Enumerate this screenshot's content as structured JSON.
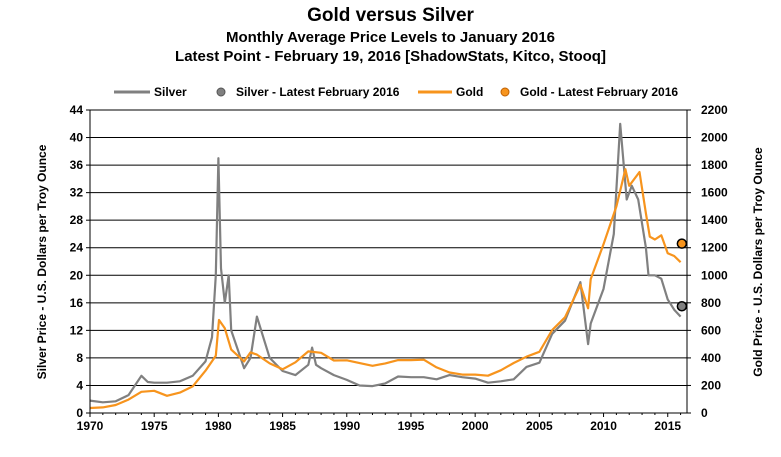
{
  "chart_data": {
    "type": "line",
    "title": "Gold versus Silver",
    "subtitle": "Monthly Average Price Levels to January 2016",
    "subtitle2": "Latest Point - February 19, 2016 [ShadowStats, Kitco, Stooq]",
    "ylabel_left": "Silver  Price - U.S. Dollars per Troy Ounce",
    "ylabel_right": "Gold Price - U.S. Dollars per Troy Ounce",
    "xlim": [
      1970,
      2016.5
    ],
    "ylim_left": [
      0,
      44
    ],
    "ylim_right": [
      0,
      2200
    ],
    "x_ticks": [
      "1970",
      "1975",
      "1980",
      "1985",
      "1990",
      "1995",
      "2000",
      "2005",
      "2010",
      "2015"
    ],
    "y_left_ticks": [
      "0",
      "4",
      "8",
      "12",
      "16",
      "20",
      "24",
      "28",
      "32",
      "36",
      "40",
      "44"
    ],
    "y_right_ticks": [
      "0",
      "200",
      "400",
      "600",
      "800",
      "1000",
      "1200",
      "1400",
      "1600",
      "1800",
      "2000",
      "2200"
    ],
    "grid": true,
    "legend_position": "top",
    "legend": [
      {
        "label": "Silver",
        "kind": "line",
        "color": "#808080"
      },
      {
        "label": "Silver - Latest February 2016",
        "kind": "marker",
        "color": "#808080"
      },
      {
        "label": "Gold",
        "kind": "line",
        "color": "#f7941d"
      },
      {
        "label": "Gold - Latest February 2016",
        "kind": "marker",
        "color": "#f7941d"
      }
    ],
    "series": [
      {
        "name": "Silver",
        "axis": "left",
        "color": "#808080",
        "points": [
          [
            1970,
            1.8
          ],
          [
            1971,
            1.55
          ],
          [
            1972,
            1.7
          ],
          [
            1973,
            2.6
          ],
          [
            1974,
            5.4
          ],
          [
            1974.5,
            4.5
          ],
          [
            1975,
            4.4
          ],
          [
            1976,
            4.4
          ],
          [
            1977,
            4.6
          ],
          [
            1978,
            5.4
          ],
          [
            1979,
            7.5
          ],
          [
            1979.5,
            11
          ],
          [
            1979.8,
            20
          ],
          [
            1980.0,
            37
          ],
          [
            1980.2,
            21
          ],
          [
            1980.5,
            16
          ],
          [
            1980.8,
            20
          ],
          [
            1981,
            12
          ],
          [
            1982,
            6.5
          ],
          [
            1982.5,
            8
          ],
          [
            1983,
            14
          ],
          [
            1983.5,
            11
          ],
          [
            1984,
            8
          ],
          [
            1985,
            6.1
          ],
          [
            1986,
            5.5
          ],
          [
            1987,
            7.0
          ],
          [
            1987.3,
            9.5
          ],
          [
            1987.6,
            7.0
          ],
          [
            1988,
            6.5
          ],
          [
            1989,
            5.5
          ],
          [
            1990,
            4.8
          ],
          [
            1991,
            4.0
          ],
          [
            1992,
            3.9
          ],
          [
            1993,
            4.3
          ],
          [
            1994,
            5.3
          ],
          [
            1995,
            5.2
          ],
          [
            1996,
            5.2
          ],
          [
            1997,
            4.9
          ],
          [
            1998,
            5.5
          ],
          [
            1999,
            5.2
          ],
          [
            2000,
            5.0
          ],
          [
            2001,
            4.4
          ],
          [
            2002,
            4.6
          ],
          [
            2003,
            4.9
          ],
          [
            2004,
            6.7
          ],
          [
            2005,
            7.3
          ],
          [
            2006,
            11.5
          ],
          [
            2007,
            13.4
          ],
          [
            2008.2,
            19
          ],
          [
            2008.8,
            10
          ],
          [
            2009,
            13
          ],
          [
            2010,
            18
          ],
          [
            2010.8,
            26
          ],
          [
            2011.3,
            42
          ],
          [
            2011.8,
            31
          ],
          [
            2012.2,
            33
          ],
          [
            2012.7,
            31
          ],
          [
            2013.3,
            24
          ],
          [
            2013.5,
            20
          ],
          [
            2014,
            20
          ],
          [
            2014.5,
            19.5
          ],
          [
            2015,
            16.5
          ],
          [
            2015.5,
            15
          ],
          [
            2016,
            14.0
          ]
        ]
      },
      {
        "name": "Gold",
        "axis": "right",
        "color": "#f7941d",
        "points": [
          [
            1970,
            36
          ],
          [
            1971,
            41
          ],
          [
            1972,
            58
          ],
          [
            1973,
            97
          ],
          [
            1974,
            154
          ],
          [
            1975,
            161
          ],
          [
            1976,
            125
          ],
          [
            1977,
            148
          ],
          [
            1978,
            193
          ],
          [
            1979,
            307
          ],
          [
            1979.8,
            415
          ],
          [
            1980.05,
            675
          ],
          [
            1980.5,
            615
          ],
          [
            1981,
            460
          ],
          [
            1982,
            375
          ],
          [
            1982.5,
            440
          ],
          [
            1983,
            424
          ],
          [
            1984,
            360
          ],
          [
            1985,
            317
          ],
          [
            1986,
            368
          ],
          [
            1987,
            447
          ],
          [
            1988,
            437
          ],
          [
            1989,
            381
          ],
          [
            1990,
            383
          ],
          [
            1991,
            362
          ],
          [
            1992,
            343
          ],
          [
            1993,
            360
          ],
          [
            1994,
            384
          ],
          [
            1995,
            384
          ],
          [
            1996,
            387
          ],
          [
            1997,
            331
          ],
          [
            1998,
            294
          ],
          [
            1999,
            279
          ],
          [
            2000,
            279
          ],
          [
            2001,
            271
          ],
          [
            2002,
            310
          ],
          [
            2003,
            363
          ],
          [
            2004,
            409
          ],
          [
            2005,
            444
          ],
          [
            2006,
            603
          ],
          [
            2007,
            695
          ],
          [
            2008.2,
            930
          ],
          [
            2008.8,
            760
          ],
          [
            2009,
            972
          ],
          [
            2010,
            1225
          ],
          [
            2011,
            1500
          ],
          [
            2011.7,
            1770
          ],
          [
            2012,
            1650
          ],
          [
            2012.8,
            1750
          ],
          [
            2013.3,
            1450
          ],
          [
            2013.6,
            1280
          ],
          [
            2014,
            1260
          ],
          [
            2014.5,
            1290
          ],
          [
            2015,
            1160
          ],
          [
            2015.5,
            1140
          ],
          [
            2016,
            1095
          ]
        ]
      },
      {
        "name": "Silver - Latest February 2016",
        "axis": "left",
        "color": "#808080",
        "points": [
          [
            2016.1,
            15.5
          ]
        ]
      },
      {
        "name": "Gold - Latest February 2016",
        "axis": "right",
        "color": "#f7941d",
        "points": [
          [
            2016.1,
            1230
          ]
        ]
      }
    ]
  }
}
